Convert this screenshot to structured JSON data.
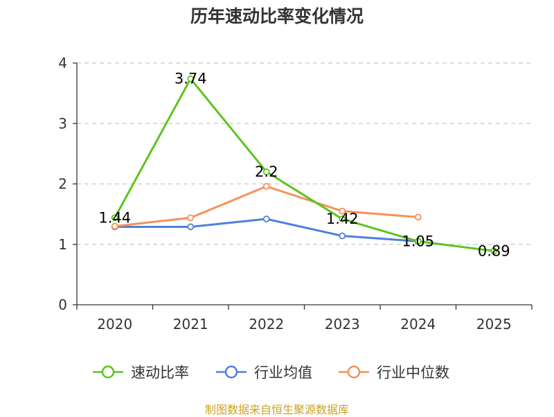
{
  "colors": {
    "quick_ratio": "#5bc41f",
    "industry_avg": "#4d7fdb",
    "industry_median": "#f79057",
    "source": "#c9a227",
    "grid": "#c8c8c8",
    "axis": "#333333"
  },
  "legend": [
    {
      "name": "速动比率",
      "color": "#5bc41f"
    },
    {
      "name": "行业均值",
      "color": "#4d7fdb"
    },
    {
      "name": "行业中位数",
      "color": "#f79057"
    }
  ],
  "source_text": "制图数据来自恒生聚源数据库",
  "chart_data": {
    "type": "line",
    "title": "历年速动比率变化情况",
    "categories": [
      "2020",
      "2021",
      "2022",
      "2023",
      "2024",
      "2025"
    ],
    "ylim": [
      0,
      4
    ],
    "yticks": [
      0,
      1,
      2,
      3,
      4
    ],
    "grid": true,
    "legend_position": "bottom",
    "series": [
      {
        "name": "速动比率",
        "values": [
          1.44,
          3.74,
          2.2,
          1.42,
          1.05,
          0.89
        ],
        "labels": [
          "1.44",
          "3.74",
          "2.2",
          "1.42",
          "1.05",
          "0.89"
        ],
        "show_labels": true
      },
      {
        "name": "行业均值",
        "values": [
          1.29,
          1.29,
          1.42,
          1.14,
          1.05,
          null
        ],
        "show_labels": false
      },
      {
        "name": "行业中位数",
        "values": [
          1.3,
          1.44,
          1.96,
          1.55,
          1.45,
          null
        ],
        "show_labels": false
      }
    ]
  }
}
